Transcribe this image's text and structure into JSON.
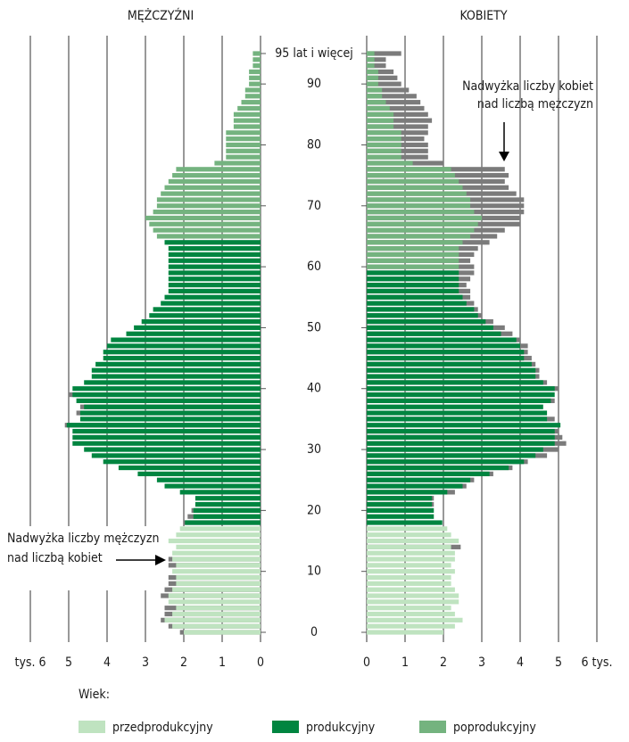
{
  "chart_data": {
    "type": "pyramid",
    "categories": [
      "0",
      null,
      null,
      null,
      null,
      null,
      null,
      null,
      null,
      null,
      "10",
      null,
      null,
      null,
      null,
      null,
      null,
      null,
      null,
      null,
      "20",
      null,
      null,
      null,
      null,
      null,
      null,
      null,
      null,
      null,
      "30",
      null,
      null,
      null,
      null,
      null,
      null,
      null,
      null,
      null,
      "40",
      null,
      null,
      null,
      null,
      null,
      null,
      null,
      null,
      null,
      "50",
      null,
      null,
      null,
      null,
      null,
      null,
      null,
      null,
      null,
      "60",
      null,
      null,
      null,
      null,
      null,
      null,
      null,
      null,
      null,
      "70",
      null,
      null,
      null,
      null,
      null,
      null,
      null,
      null,
      null,
      "80",
      null,
      null,
      null,
      null,
      null,
      null,
      null,
      null,
      null,
      "90",
      null,
      null,
      null,
      null,
      "95 lat i więcej"
    ],
    "excess_color": "#7b7b7b",
    "legend_title": "Wiek:",
    "left": {
      "title": "MĘŻCZYŹNI",
      "xlim": [
        0,
        6
      ],
      "xticks": [
        0,
        1,
        2,
        3,
        4,
        5,
        {
          "value": 6,
          "label": "tys. 6"
        }
      ],
      "series": [
        {
          "name": "przedprodukcyjny",
          "color": "#bfe3c0",
          "values": [
            2.1,
            2.4,
            2.6,
            2.5,
            2.5,
            2.4,
            2.6,
            2.5,
            2.4,
            2.4,
            2.3,
            2.4,
            2.4,
            2.3,
            2.2,
            2.4,
            2.2,
            2.1,
            null,
            null,
            null,
            null,
            null,
            null,
            null,
            null,
            null,
            null,
            null,
            null,
            null,
            null,
            null,
            null,
            null,
            null,
            null,
            null,
            null,
            null,
            null,
            null,
            null,
            null,
            null,
            null,
            null,
            null,
            null,
            null,
            null,
            null,
            null,
            null,
            null,
            null,
            null,
            null,
            null,
            null,
            null,
            null,
            null,
            null,
            null,
            null,
            null,
            null,
            null,
            null,
            null,
            null,
            null,
            null,
            null,
            null,
            null,
            null,
            null,
            null,
            null,
            null,
            null,
            null,
            null,
            null,
            null,
            null,
            null,
            null,
            null,
            null,
            null,
            null,
            null,
            null
          ]
        },
        {
          "name": "produkcyjny",
          "color": "#008540",
          "values": [
            null,
            null,
            null,
            null,
            null,
            null,
            null,
            null,
            null,
            null,
            null,
            null,
            null,
            null,
            null,
            null,
            null,
            null,
            2.0,
            1.9,
            1.8,
            1.7,
            1.7,
            2.1,
            2.5,
            2.7,
            3.2,
            3.7,
            4.1,
            4.4,
            4.6,
            4.9,
            4.9,
            4.9,
            5.1,
            4.7,
            4.8,
            4.7,
            4.8,
            5.0,
            4.9,
            4.6,
            4.4,
            4.4,
            4.3,
            4.1,
            4.1,
            4.0,
            3.9,
            3.5,
            3.3,
            3.1,
            2.9,
            2.8,
            2.6,
            2.5,
            2.4,
            2.4,
            2.4,
            2.4,
            2.4,
            2.4,
            2.4,
            2.4,
            2.5,
            null,
            null,
            null,
            null,
            null,
            null,
            null,
            null,
            null,
            null,
            null,
            null,
            null,
            null,
            null,
            null,
            null,
            null,
            null,
            null,
            null,
            null,
            null,
            null,
            null,
            null,
            null,
            null,
            null,
            null,
            null
          ]
        },
        {
          "name": "poprodukcyjny",
          "color": "#74b37f",
          "values": [
            null,
            null,
            null,
            null,
            null,
            null,
            null,
            null,
            null,
            null,
            null,
            null,
            null,
            null,
            null,
            null,
            null,
            null,
            null,
            null,
            null,
            null,
            null,
            null,
            null,
            null,
            null,
            null,
            null,
            null,
            null,
            null,
            null,
            null,
            null,
            null,
            null,
            null,
            null,
            null,
            null,
            null,
            null,
            null,
            null,
            null,
            null,
            null,
            null,
            null,
            null,
            null,
            null,
            null,
            null,
            null,
            null,
            null,
            null,
            null,
            null,
            null,
            null,
            null,
            null,
            2.7,
            2.8,
            2.9,
            3.0,
            2.8,
            2.7,
            2.7,
            2.6,
            2.5,
            2.4,
            2.3,
            2.2,
            1.2,
            0.9,
            0.9,
            0.9,
            0.9,
            0.9,
            0.7,
            0.7,
            0.7,
            0.6,
            0.5,
            0.4,
            0.4,
            0.3,
            0.3,
            0.3,
            0.2,
            0.2,
            0.2
          ]
        }
      ]
    },
    "right": {
      "title": "KOBIETY",
      "xlim": [
        0,
        6
      ],
      "xticks": [
        0,
        1,
        2,
        3,
        4,
        5,
        {
          "value": 6,
          "label": "6 tys."
        }
      ],
      "series": [
        {
          "values": [
            2.0,
            2.3,
            2.5,
            2.3,
            2.2,
            2.4,
            2.4,
            2.3,
            2.2,
            2.2,
            2.3,
            2.2,
            2.3,
            2.3,
            2.45,
            2.4,
            2.2,
            2.1,
            null,
            null,
            null,
            null,
            null,
            null,
            null,
            null,
            null,
            null,
            null,
            null,
            null,
            null,
            null,
            null,
            null,
            null,
            null,
            null,
            null,
            null,
            null,
            null,
            null,
            null,
            null,
            null,
            null,
            null,
            null,
            null,
            null,
            null,
            null,
            null,
            null,
            null,
            null,
            null,
            null,
            null,
            null,
            null,
            null,
            null,
            null,
            null,
            null,
            null,
            null,
            null,
            null,
            null,
            null,
            null,
            null,
            null,
            null,
            null,
            null,
            null,
            null,
            null,
            null,
            null,
            null,
            null,
            null,
            null,
            null,
            null,
            null,
            null,
            null,
            null,
            null,
            null
          ]
        },
        {
          "values": [
            null,
            null,
            null,
            null,
            null,
            null,
            null,
            null,
            null,
            null,
            null,
            null,
            null,
            null,
            null,
            null,
            null,
            null,
            1.97,
            1.75,
            1.75,
            1.75,
            1.75,
            2.3,
            2.6,
            2.8,
            3.3,
            3.8,
            4.2,
            4.7,
            5.0,
            5.2,
            5.1,
            5.0,
            5.05,
            4.9,
            4.7,
            4.6,
            4.9,
            4.9,
            5.0,
            4.7,
            4.5,
            4.5,
            4.4,
            4.3,
            4.2,
            4.2,
            4.0,
            3.8,
            3.6,
            3.3,
            3.0,
            2.9,
            2.8,
            2.7,
            2.7,
            2.6,
            2.7,
            2.8,
            null,
            null,
            null,
            null,
            null,
            null,
            null,
            null,
            null,
            null,
            null,
            null,
            null,
            null,
            null,
            null,
            null,
            null,
            null,
            null,
            null,
            null,
            null,
            null,
            null,
            null,
            null,
            null,
            null,
            null,
            null,
            null,
            null,
            null,
            null,
            null
          ]
        },
        {
          "values": [
            null,
            null,
            null,
            null,
            null,
            null,
            null,
            null,
            null,
            null,
            null,
            null,
            null,
            null,
            null,
            null,
            null,
            null,
            null,
            null,
            null,
            null,
            null,
            null,
            null,
            null,
            null,
            null,
            null,
            null,
            null,
            null,
            null,
            null,
            null,
            null,
            null,
            null,
            null,
            null,
            null,
            null,
            null,
            null,
            null,
            null,
            null,
            null,
            null,
            null,
            null,
            null,
            null,
            null,
            null,
            null,
            null,
            null,
            null,
            null,
            2.8,
            2.7,
            2.8,
            2.9,
            3.2,
            3.4,
            3.6,
            4.0,
            4.0,
            4.1,
            4.1,
            4.1,
            3.9,
            3.7,
            3.6,
            3.7,
            3.6,
            2.0,
            1.6,
            1.6,
            1.6,
            1.5,
            1.6,
            1.6,
            1.7,
            1.6,
            1.5,
            1.4,
            1.3,
            1.1,
            0.9,
            0.8,
            0.7,
            0.5,
            0.5,
            0.9
          ]
        }
      ]
    },
    "annotations": [
      {
        "lines": [
          "Nadwyżka liczby kobiet",
          "nad liczbą mężczyzn"
        ]
      },
      {
        "lines": [
          "Nadwyżka liczby mężczyzn",
          "nad liczbą kobiet"
        ]
      }
    ]
  }
}
